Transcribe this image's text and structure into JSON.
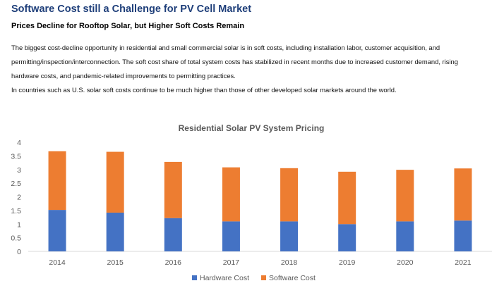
{
  "header": {
    "title": "Software Cost still a Challenge for PV Cell Market",
    "subtitle": "Prices Decline for Rooftop Solar, but Higher Soft Costs Remain"
  },
  "body": {
    "paragraph1": "The biggest cost-decline opportunity in residential and small commercial solar is in soft costs, including installation labor, customer acquisition, and permitting/inspection/interconnection. The soft cost share of total system costs has stabilized in recent months due to increased customer demand, rising hardware costs, and pandemic-related improvements to permitting practices.",
    "paragraph2": "In countries such as U.S. solar soft costs continue to be much higher than those of other developed solar markets around the world."
  },
  "chart_data": {
    "type": "bar",
    "stacked": true,
    "title": "Residential Solar PV System Pricing",
    "categories": [
      "2014",
      "2015",
      "2016",
      "2017",
      "2018",
      "2019",
      "2020",
      "2021"
    ],
    "series": [
      {
        "name": "Hardware Cost",
        "color": "#4472c4",
        "values": [
          1.52,
          1.42,
          1.22,
          1.1,
          1.1,
          1.0,
          1.1,
          1.13
        ]
      },
      {
        "name": "Software Cost",
        "color": "#ed7d31",
        "values": [
          2.15,
          2.23,
          2.06,
          1.98,
          1.95,
          1.92,
          1.89,
          1.91
        ]
      }
    ],
    "ylim": [
      0,
      4
    ],
    "yticks": [
      "0",
      "0.5",
      "1",
      "1.5",
      "2",
      "2.5",
      "3",
      "3.5",
      "4"
    ],
    "legend": "bottom",
    "grid": false
  }
}
